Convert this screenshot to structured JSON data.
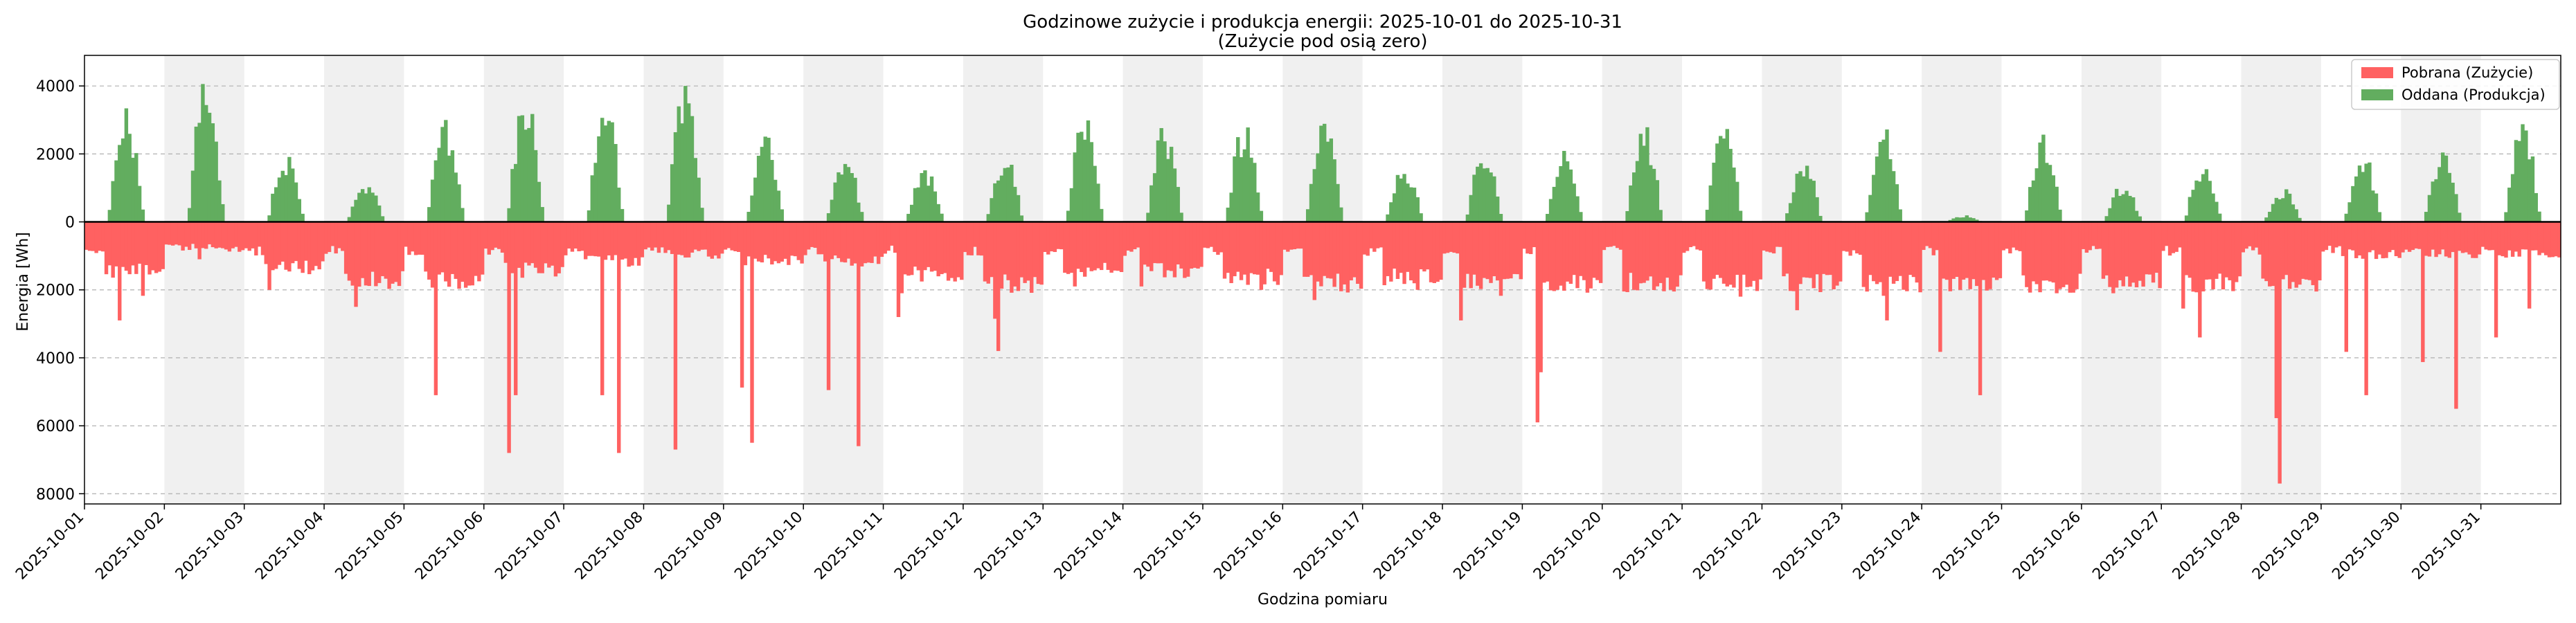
{
  "chart_data": {
    "type": "bar",
    "title": "Godzinowe zużycie i produkcja energii: 2025-10-01 do 2025-10-31",
    "subtitle": "(Zużycie pod osią zero)",
    "xlabel": "Godzina pomiaru",
    "ylabel": "Energia [Wh]",
    "ylim": [
      -8300,
      4900
    ],
    "y_ticks": [
      4000,
      2000,
      0,
      -2000,
      -4000,
      -6000,
      -8000
    ],
    "y_tick_labels": [
      "4000",
      "2000",
      "0",
      "2000",
      "4000",
      "6000",
      "8000"
    ],
    "x_tick_labels": [
      "2025-10-01",
      "2025-10-02",
      "2025-10-03",
      "2025-10-04",
      "2025-10-05",
      "2025-10-06",
      "2025-10-07",
      "2025-10-08",
      "2025-10-09",
      "2025-10-10",
      "2025-10-11",
      "2025-10-12",
      "2025-10-13",
      "2025-10-14",
      "2025-10-15",
      "2025-10-16",
      "2025-10-17",
      "2025-10-18",
      "2025-10-19",
      "2025-10-20",
      "2025-10-21",
      "2025-10-22",
      "2025-10-23",
      "2025-10-24",
      "2025-10-25",
      "2025-10-26",
      "2025-10-27",
      "2025-10-28",
      "2025-10-29",
      "2025-10-30",
      "2025-10-31"
    ],
    "shaded_days": [
      "2025-10-02",
      "2025-10-04",
      "2025-10-06",
      "2025-10-08",
      "2025-10-10",
      "2025-10-12",
      "2025-10-14",
      "2025-10-16",
      "2025-10-18",
      "2025-10-20",
      "2025-10-22",
      "2025-10-24",
      "2025-10-26",
      "2025-10-28",
      "2025-10-30"
    ],
    "grid": "horizontal dashed",
    "legend_position": "top-right",
    "series": [
      {
        "name": "Pobrana (Zużycie)",
        "color": "#ff6161",
        "direction": "below zero"
      },
      {
        "name": "Oddana (Produkcja)",
        "color": "#62ad5f",
        "direction": "above zero"
      }
    ],
    "daily_summary": [
      {
        "day": "2025-10-01",
        "peak_produced": 3400,
        "typical_consumed": 1500,
        "peak_consumed": 2900
      },
      {
        "day": "2025-10-02",
        "peak_produced": 4300,
        "typical_consumed": 800,
        "peak_consumed": 1100
      },
      {
        "day": "2025-10-03",
        "peak_produced": 2000,
        "typical_consumed": 1400,
        "peak_consumed": 2000
      },
      {
        "day": "2025-10-04",
        "peak_produced": 1200,
        "typical_consumed": 1800,
        "peak_consumed": 2500
      },
      {
        "day": "2025-10-05",
        "peak_produced": 3100,
        "typical_consumed": 1800,
        "peak_consumed": 5100
      },
      {
        "day": "2025-10-06",
        "peak_produced": 3800,
        "typical_consumed": 1500,
        "peak_consumed": 6800
      },
      {
        "day": "2025-10-07",
        "peak_produced": 3600,
        "typical_consumed": 1200,
        "peak_consumed": 6800
      },
      {
        "day": "2025-10-08",
        "peak_produced": 4200,
        "typical_consumed": 1000,
        "peak_consumed": 6700
      },
      {
        "day": "2025-10-09",
        "peak_produced": 2600,
        "typical_consumed": 1200,
        "peak_consumed": 6500
      },
      {
        "day": "2025-10-10",
        "peak_produced": 2100,
        "typical_consumed": 1200,
        "peak_consumed": 6600
      },
      {
        "day": "2025-10-11",
        "peak_produced": 1700,
        "typical_consumed": 1600,
        "peak_consumed": 2800
      },
      {
        "day": "2025-10-12",
        "peak_produced": 2000,
        "typical_consumed": 1900,
        "peak_consumed": 3800
      },
      {
        "day": "2025-10-13",
        "peak_produced": 3300,
        "typical_consumed": 1500,
        "peak_consumed": 1900
      },
      {
        "day": "2025-10-14",
        "peak_produced": 2900,
        "typical_consumed": 1500,
        "peak_consumed": 1900
      },
      {
        "day": "2025-10-15",
        "peak_produced": 3000,
        "typical_consumed": 1700,
        "peak_consumed": 2000
      },
      {
        "day": "2025-10-16",
        "peak_produced": 3100,
        "typical_consumed": 1900,
        "peak_consumed": 2300
      },
      {
        "day": "2025-10-17",
        "peak_produced": 1800,
        "typical_consumed": 1700,
        "peak_consumed": 2000
      },
      {
        "day": "2025-10-18",
        "peak_produced": 2200,
        "typical_consumed": 1900,
        "peak_consumed": 2900
      },
      {
        "day": "2025-10-19",
        "peak_produced": 2100,
        "typical_consumed": 1900,
        "peak_consumed": 5900
      },
      {
        "day": "2025-10-20",
        "peak_produced": 3000,
        "typical_consumed": 1900,
        "peak_consumed": 2000
      },
      {
        "day": "2025-10-21",
        "peak_produced": 2900,
        "typical_consumed": 1900,
        "peak_consumed": 2200
      },
      {
        "day": "2025-10-22",
        "peak_produced": 1900,
        "typical_consumed": 1900,
        "peak_consumed": 2600
      },
      {
        "day": "2025-10-23",
        "peak_produced": 2900,
        "typical_consumed": 1900,
        "peak_consumed": 2900
      },
      {
        "day": "2025-10-24",
        "peak_produced": 200,
        "typical_consumed": 1900,
        "peak_consumed": 5100
      },
      {
        "day": "2025-10-25",
        "peak_produced": 2700,
        "typical_consumed": 1900,
        "peak_consumed": 2100
      },
      {
        "day": "2025-10-26",
        "peak_produced": 1200,
        "typical_consumed": 1800,
        "peak_consumed": 2100
      },
      {
        "day": "2025-10-27",
        "peak_produced": 1800,
        "typical_consumed": 1900,
        "peak_consumed": 3400
      },
      {
        "day": "2025-10-28",
        "peak_produced": 1000,
        "typical_consumed": 1900,
        "peak_consumed": 7700
      },
      {
        "day": "2025-10-29",
        "peak_produced": 2100,
        "typical_consumed": 1000,
        "peak_consumed": 5100
      },
      {
        "day": "2025-10-30",
        "peak_produced": 2100,
        "typical_consumed": 1000,
        "peak_consumed": 5500
      },
      {
        "day": "2025-10-31",
        "peak_produced": 3000,
        "typical_consumed": 1000,
        "peak_consumed": 3400
      }
    ]
  }
}
